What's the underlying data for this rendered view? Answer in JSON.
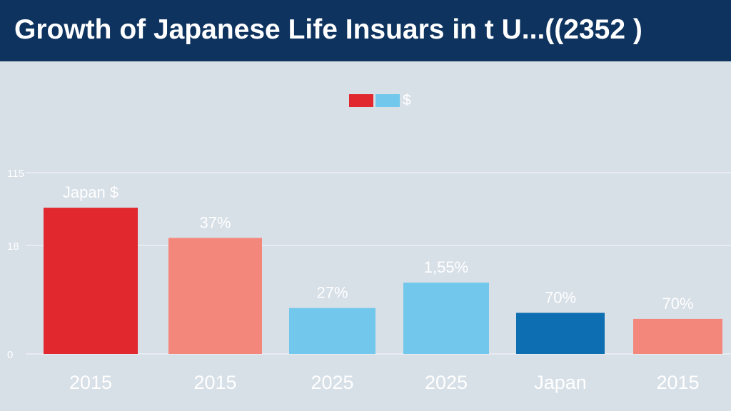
{
  "header": {
    "title": "Growth of  Japanese Life Insuars in t U...((2352 )"
  },
  "legend": {
    "label": "$",
    "colors": [
      "#e0282e",
      "#72c8ec"
    ]
  },
  "chart_data": {
    "type": "bar",
    "title": "Growth of  Japanese Life Insuars in t U...((2352 )",
    "ytick_labels": [
      "0",
      "18",
      "115"
    ],
    "ylim": [
      0,
      150
    ],
    "grid": true,
    "legend_position": "top-center",
    "categories": [
      "2015",
      "2015",
      "2025",
      "2025",
      "Japan",
      "2015"
    ],
    "values": [
      121,
      96,
      38,
      59,
      34,
      29
    ],
    "data_labels": [
      "Japan $",
      "37%",
      "27%",
      "1,55%",
      "70%",
      "70%"
    ],
    "colors": [
      "#e0282e",
      "#f4877b",
      "#72c8ec",
      "#72c8ec",
      "#0e6eb2",
      "#f4877b"
    ]
  }
}
